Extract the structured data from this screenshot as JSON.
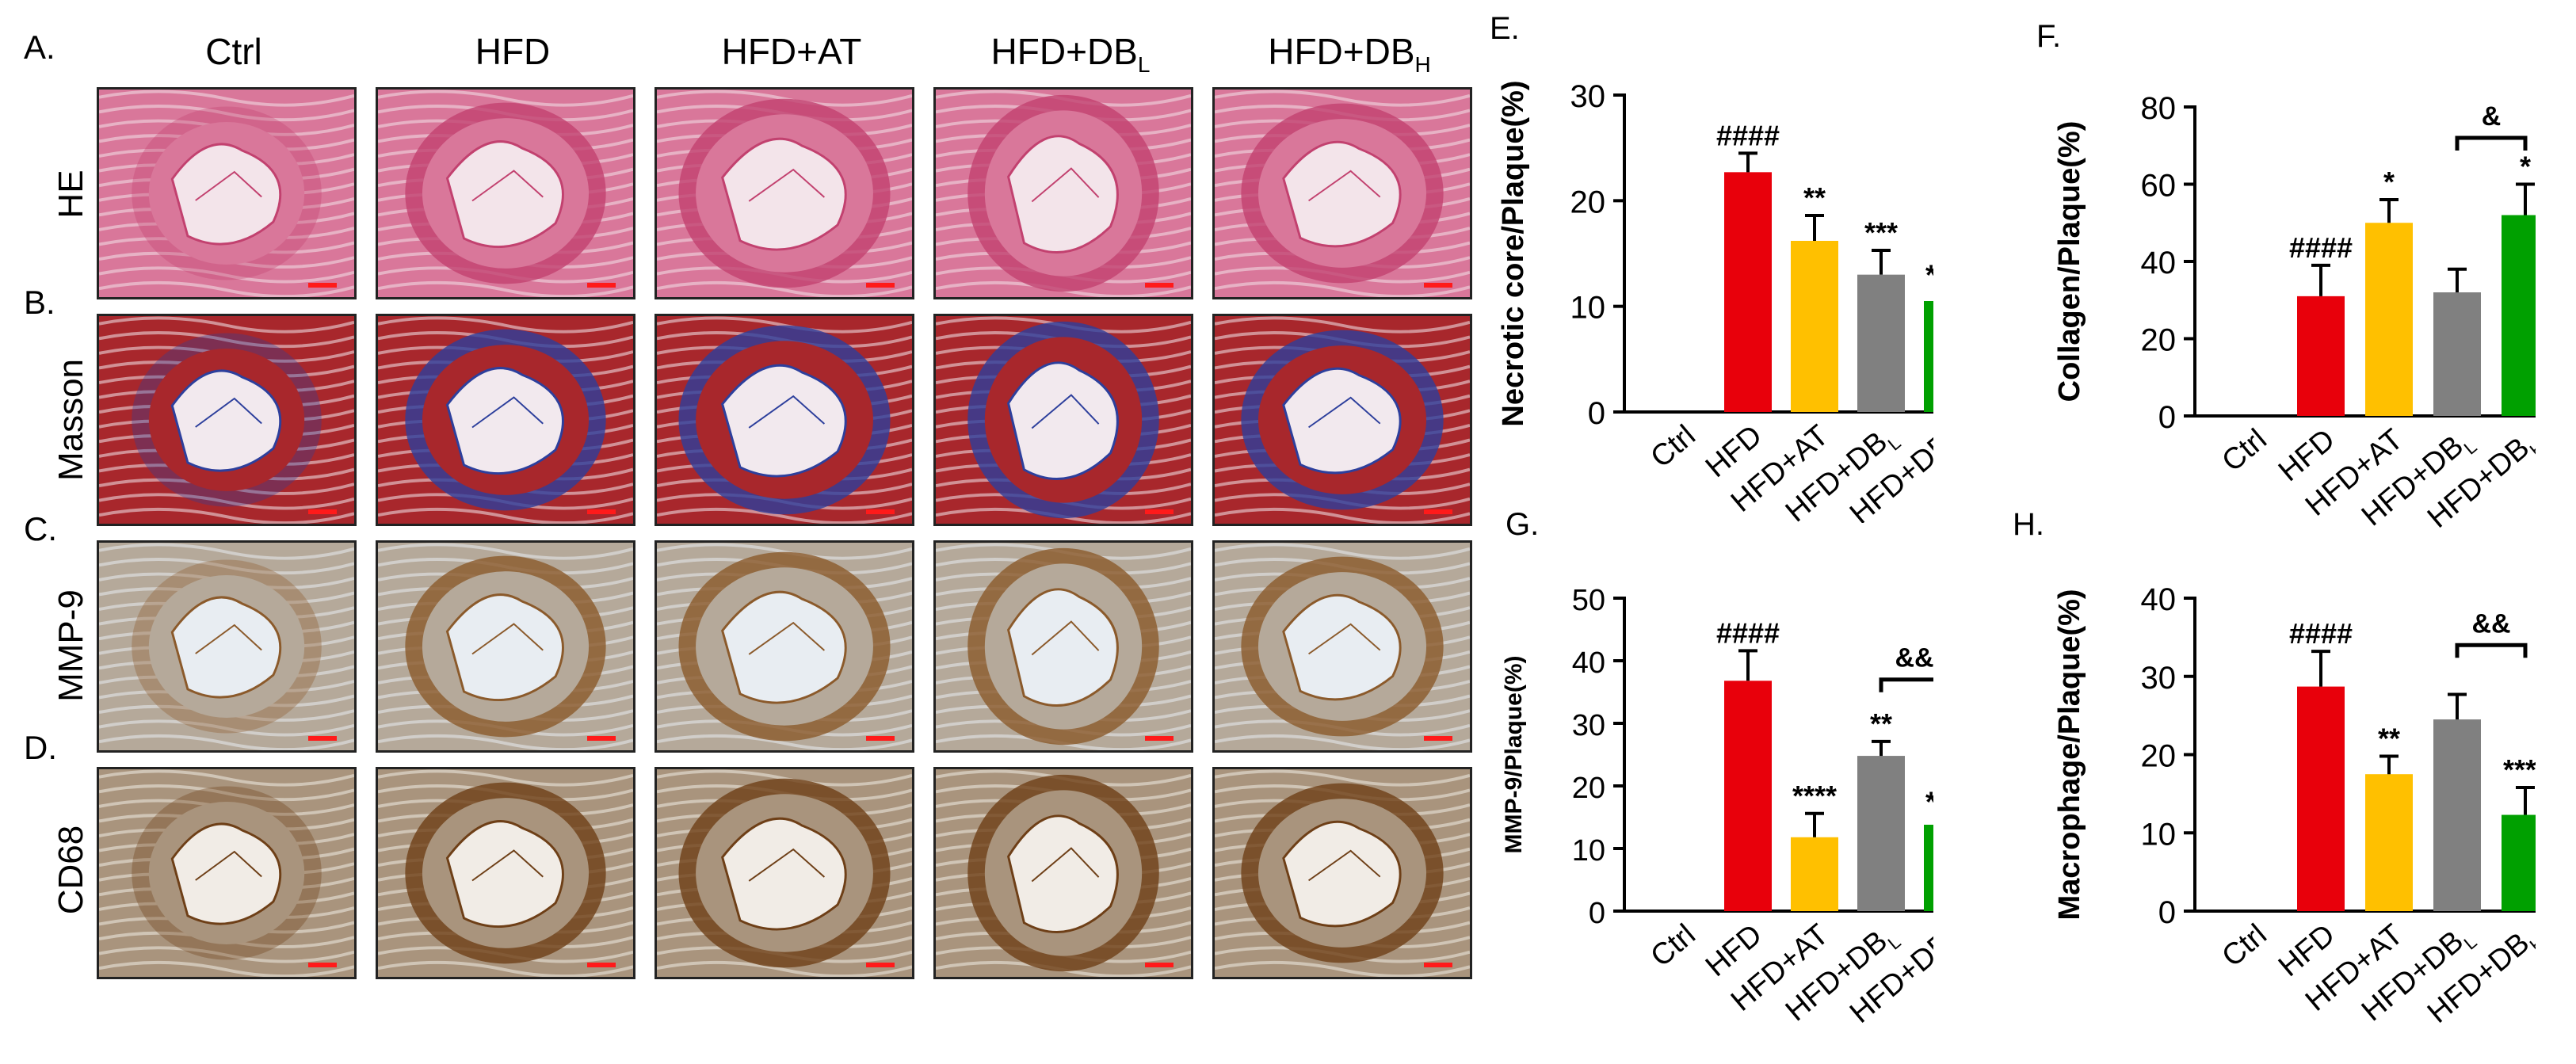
{
  "figure": {
    "panel_labels": [
      "A.",
      "B.",
      "C.",
      "D."
    ],
    "columns": [
      {
        "main": "Ctrl",
        "sub": ""
      },
      {
        "main": "HFD",
        "sub": ""
      },
      {
        "main": "HFD+AT",
        "sub": ""
      },
      {
        "main": "HFD+DB",
        "sub": "L"
      },
      {
        "main": "HFD+DB",
        "sub": "H"
      }
    ],
    "rows": [
      "HE",
      "Masson",
      "MMP-9",
      "CD68"
    ],
    "stain_colors": {
      "HE": {
        "bg": "#f3e4ea",
        "tissue": "#d9779a",
        "dark": "#c2416f"
      },
      "Masson": {
        "bg": "#f2e9ee",
        "tissue": "#a8272c",
        "dark": "#2d3f9c"
      },
      "MMP-9": {
        "bg": "#e8edf2",
        "tissue": "#b5a99a",
        "dark": "#8b5a2b"
      },
      "CD68": {
        "bg": "#f1ece6",
        "tissue": "#a9947d",
        "dark": "#6e3f17"
      }
    }
  },
  "chart_data": [
    {
      "panel": "E.",
      "type": "bar",
      "ylabel": "Necrotic core/Plaque(%)",
      "ylim": [
        0,
        30
      ],
      "yticks": [
        0,
        10,
        20,
        30
      ],
      "categories": [
        {
          "main": "Ctrl",
          "sub": ""
        },
        {
          "main": "HFD",
          "sub": ""
        },
        {
          "main": "HFD+AT",
          "sub": ""
        },
        {
          "main": "HFD+DB",
          "sub": "L"
        },
        {
          "main": "HFD+DB",
          "sub": "H"
        }
      ],
      "values": [
        0,
        22.7,
        16.2,
        13.0,
        10.5
      ],
      "errors": [
        0,
        1.8,
        2.4,
        2.3,
        0.8
      ],
      "colors": [
        "#e8000b",
        "#e8000b",
        "#ffc000",
        "#808080",
        "#00a000"
      ],
      "annotations": [
        "",
        "####",
        "**",
        "***",
        "****"
      ],
      "bracket": null
    },
    {
      "panel": "F.",
      "type": "bar",
      "ylabel": "Collagen/Plaque(%)",
      "ylim": [
        0,
        80
      ],
      "yticks": [
        0,
        20,
        40,
        60,
        80
      ],
      "categories": [
        {
          "main": "Ctrl",
          "sub": ""
        },
        {
          "main": "HFD",
          "sub": ""
        },
        {
          "main": "HFD+AT",
          "sub": ""
        },
        {
          "main": "HFD+DB",
          "sub": "L"
        },
        {
          "main": "HFD+DB",
          "sub": "H"
        }
      ],
      "values": [
        0,
        31,
        50,
        32,
        52
      ],
      "errors": [
        0,
        8,
        6,
        6,
        8
      ],
      "colors": [
        "#e8000b",
        "#e8000b",
        "#ffc000",
        "#808080",
        "#00a000"
      ],
      "annotations": [
        "",
        "####",
        "*",
        "",
        "*"
      ],
      "bracket": {
        "from": 3,
        "to": 4,
        "label": "&",
        "y": 72
      }
    },
    {
      "panel": "G.",
      "type": "bar",
      "ylabel": "MMP-9/Plaque(%)",
      "ylim": [
        0,
        50
      ],
      "yticks": [
        0,
        10,
        20,
        30,
        40,
        50
      ],
      "categories": [
        {
          "main": "Ctrl",
          "sub": ""
        },
        {
          "main": "HFD",
          "sub": ""
        },
        {
          "main": "HFD+AT",
          "sub": ""
        },
        {
          "main": "HFD+DB",
          "sub": "L"
        },
        {
          "main": "HFD+DB",
          "sub": "H"
        }
      ],
      "values": [
        0,
        36.8,
        11.8,
        24.8,
        13.8
      ],
      "errors": [
        0,
        4.8,
        3.8,
        2.3,
        0.8
      ],
      "colors": [
        "#e8000b",
        "#e8000b",
        "#ffc000",
        "#808080",
        "#00a000"
      ],
      "annotations": [
        "",
        "####",
        "****",
        "**",
        "****"
      ],
      "bracket": {
        "from": 3,
        "to": 4,
        "label": "&&",
        "y": 37
      }
    },
    {
      "panel": "H.",
      "type": "bar",
      "ylabel": "Macrophage/Plaque(%)",
      "ylim": [
        0,
        40
      ],
      "yticks": [
        0,
        10,
        20,
        30,
        40
      ],
      "categories": [
        {
          "main": "Ctrl",
          "sub": ""
        },
        {
          "main": "HFD",
          "sub": ""
        },
        {
          "main": "HFD+AT",
          "sub": ""
        },
        {
          "main": "HFD+DB",
          "sub": "L"
        },
        {
          "main": "HFD+DB",
          "sub": "H"
        }
      ],
      "values": [
        0,
        28.7,
        17.5,
        24.5,
        12.3
      ],
      "errors": [
        0,
        4.5,
        2.3,
        3.2,
        3.5
      ],
      "colors": [
        "#e8000b",
        "#e8000b",
        "#ffc000",
        "#808080",
        "#00a000"
      ],
      "annotations": [
        "",
        "####",
        "**",
        "",
        "****"
      ],
      "bracket": {
        "from": 3,
        "to": 4,
        "label": "&&",
        "y": 34
      }
    }
  ]
}
